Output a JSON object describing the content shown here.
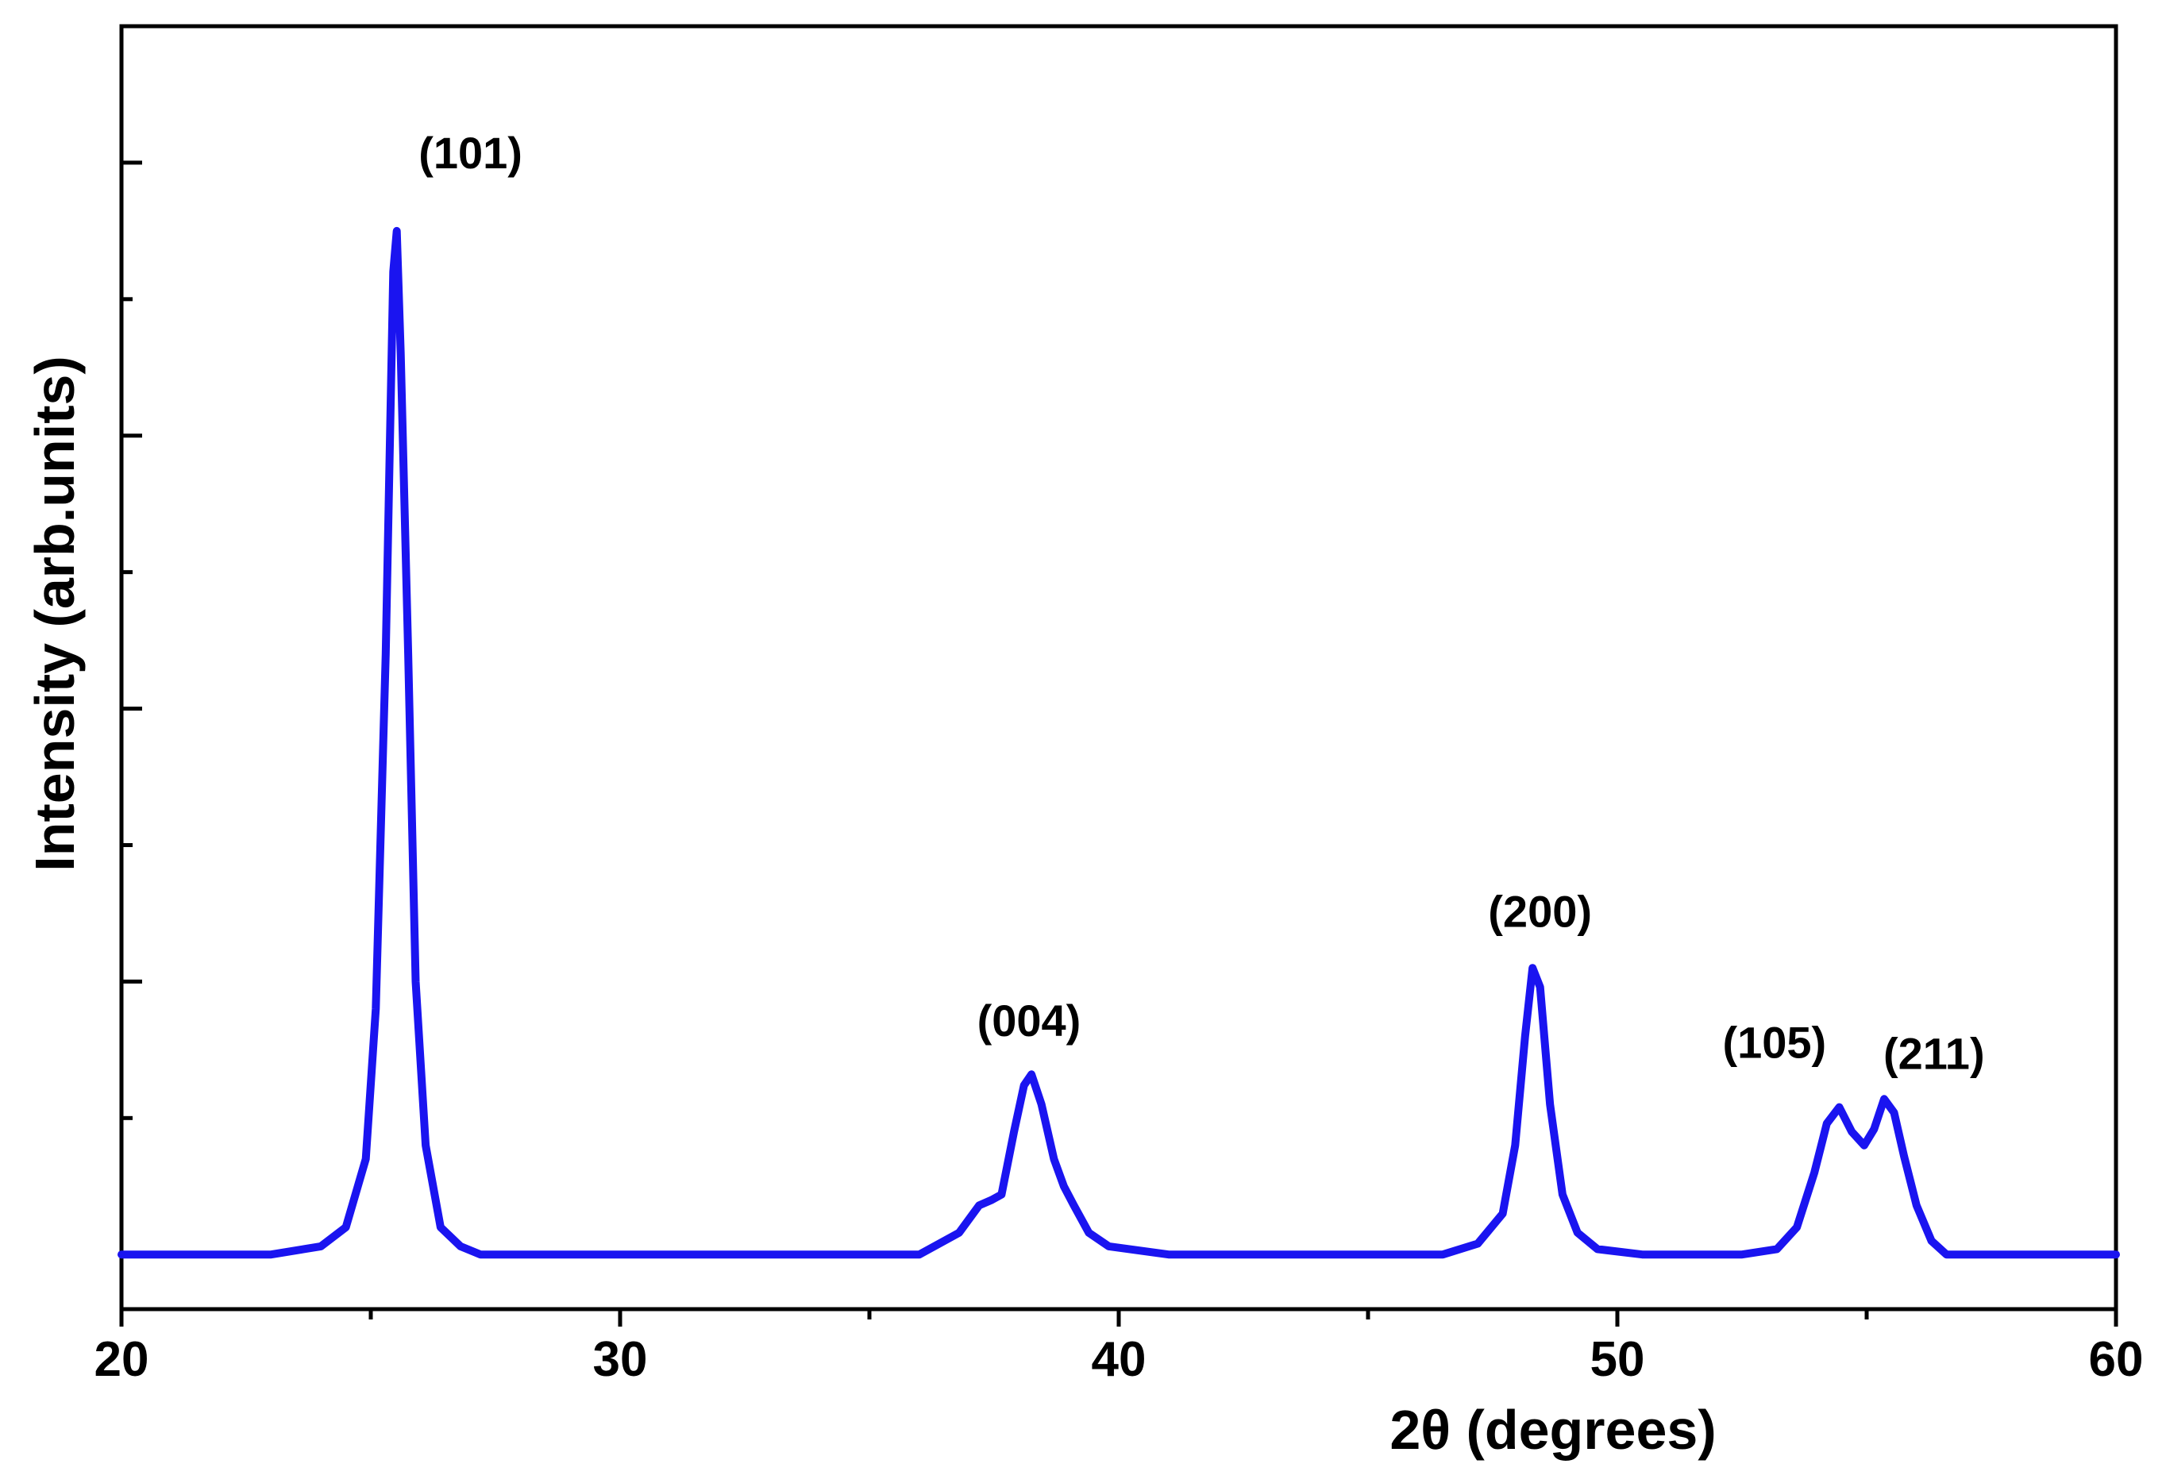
{
  "chart_data": {
    "type": "line",
    "title": "",
    "xlabel": "2θ  (degrees)",
    "ylabel": "Intensity (arb.units)",
    "xlim": [
      20,
      60
    ],
    "ylim": [
      -0.2,
      4.5
    ],
    "x_ticks": [
      20,
      30,
      40,
      50,
      60
    ],
    "x_minor_ticks": [
      25,
      35,
      45,
      55
    ],
    "y_ticks_unlabeled": [
      0,
      0.5,
      1.0,
      1.5,
      2.0,
      2.5,
      3.0,
      3.5,
      4.0
    ],
    "grid": false,
    "legend": false,
    "line_color": "#1a14f0",
    "series": [
      {
        "x": [
          20.0,
          21.0,
          22.0,
          23.0,
          24.0,
          24.5,
          24.9,
          25.1,
          25.3,
          25.45,
          25.52,
          25.6,
          25.75,
          25.9,
          26.1,
          26.4,
          26.8,
          27.2,
          28.0,
          29.0,
          30.0,
          31.0,
          32.0,
          33.0,
          34.0,
          35.0,
          36.0,
          36.8,
          37.2,
          37.45,
          37.65,
          37.9,
          38.1,
          38.25,
          38.45,
          38.7,
          38.9,
          39.1,
          39.4,
          39.8,
          41.0,
          43.0,
          45.0,
          46.5,
          47.2,
          47.7,
          47.95,
          48.15,
          48.3,
          48.45,
          48.65,
          48.9,
          49.2,
          49.6,
          50.5,
          51.5,
          52.5,
          53.2,
          53.6,
          53.95,
          54.2,
          54.45,
          54.7,
          54.95,
          55.15,
          55.35,
          55.55,
          55.75,
          56.0,
          56.3,
          56.6,
          57.0,
          58.0,
          59.0,
          60.0
        ],
        "y": [
          0.0,
          0.0,
          0.0,
          0.0,
          0.03,
          0.1,
          0.35,
          0.9,
          2.2,
          3.6,
          3.75,
          3.3,
          2.2,
          1.0,
          0.4,
          0.1,
          0.03,
          0.0,
          0.0,
          0.0,
          0.0,
          0.0,
          0.0,
          0.0,
          0.0,
          0.0,
          0.0,
          0.08,
          0.18,
          0.2,
          0.22,
          0.45,
          0.62,
          0.66,
          0.55,
          0.35,
          0.25,
          0.18,
          0.08,
          0.03,
          0.0,
          0.0,
          0.0,
          0.0,
          0.04,
          0.15,
          0.4,
          0.8,
          1.05,
          0.98,
          0.55,
          0.22,
          0.08,
          0.02,
          0.0,
          0.0,
          0.0,
          0.02,
          0.1,
          0.3,
          0.48,
          0.54,
          0.45,
          0.4,
          0.46,
          0.57,
          0.52,
          0.36,
          0.18,
          0.05,
          0.0,
          0.0,
          0.0,
          0.0,
          0.0
        ]
      }
    ],
    "annotations": [
      {
        "text": "(101)",
        "x": 27.0,
        "y": 3.98
      },
      {
        "text": "(004)",
        "x": 38.2,
        "y": 0.8
      },
      {
        "text": "(200)",
        "x": 48.45,
        "y": 1.2
      },
      {
        "text": "(105)",
        "x": 53.15,
        "y": 0.72
      },
      {
        "text": "(211)",
        "x": 56.35,
        "y": 0.68
      }
    ]
  }
}
